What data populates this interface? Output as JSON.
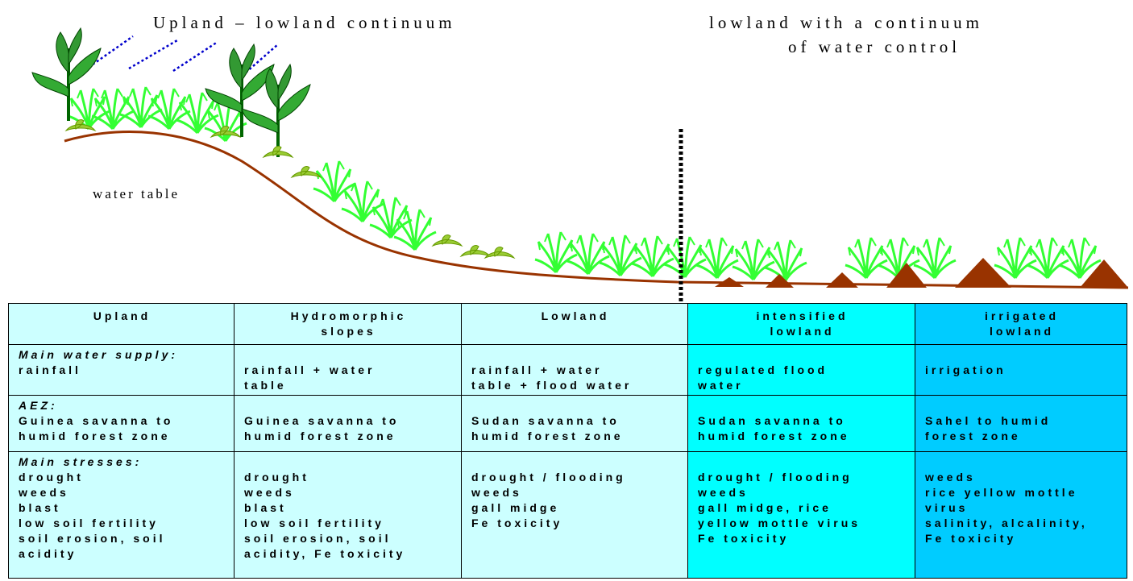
{
  "titles": {
    "left": "Upland – lowland continuum",
    "right": [
      "lowland with a continuum",
      "of water control"
    ]
  },
  "labels": {
    "water_table": "water table"
  },
  "table": {
    "headers": [
      [
        "Upland"
      ],
      [
        "Hydromorphic",
        "slopes"
      ],
      [
        "Lowland"
      ],
      [
        "intensified",
        "lowland"
      ],
      [
        "irrigated",
        "lowland"
      ]
    ],
    "rows": [
      {
        "label": "Main water supply:",
        "cells": [
          [
            "rainfall"
          ],
          [
            "rainfall + water",
            "table"
          ],
          [
            "rainfall + water",
            "table + flood water"
          ],
          [
            "regulated flood",
            "water"
          ],
          [
            "irrigation"
          ]
        ]
      },
      {
        "label": "AEZ:",
        "cells": [
          [
            "Guinea savanna to",
            "humid forest zone"
          ],
          [
            "Guinea savanna to",
            "humid forest zone"
          ],
          [
            "Sudan savanna to",
            "humid forest zone"
          ],
          [
            "Sudan savanna to",
            "humid forest zone"
          ],
          [
            "Sahel to humid",
            "forest zone"
          ]
        ]
      },
      {
        "label": "Main stresses:",
        "cells": [
          [
            "drought",
            "weeds",
            "blast",
            "low soil fertility",
            "soil erosion, soil",
            "acidity"
          ],
          [
            "drought",
            "weeds",
            "blast",
            "low soil fertility",
            "soil erosion, soil",
            "acidity, Fe toxicity"
          ],
          [
            "drought / flooding",
            "weeds",
            "gall midge",
            "Fe toxicity"
          ],
          [
            "drought / flooding",
            "weeds",
            "gall midge, rice",
            "yellow mottle virus",
            "Fe toxicity"
          ],
          [
            "weeds",
            "rice yellow mottle",
            "virus",
            "salinity, alcalinity,",
            "Fe toxicity"
          ]
        ]
      }
    ]
  }
}
